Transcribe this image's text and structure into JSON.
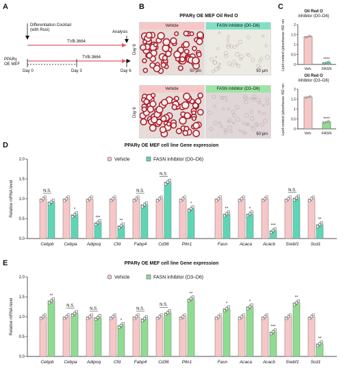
{
  "panelA": {
    "letter": "A",
    "cell_label": [
      "PPARγ",
      "OE MEF"
    ],
    "cocktail": [
      "Differentiation Cocktail",
      "(with Rosi)"
    ],
    "analysis": "Analysis",
    "treatment1": "TVB-3664",
    "treatment2": "TVB-3664",
    "days": [
      "Day 0",
      "Day 3",
      "Day 6"
    ]
  },
  "panelB": {
    "letter": "B",
    "title": "PPARγ OE MEF Oil Red O",
    "top_left_label": "Vehicle",
    "top_right_label": "FASN Inhibitor (D0–D6)",
    "bottom_left_label": "Vehicle",
    "bottom_right_label": "FASN Inhibitor (D3–D6)",
    "day_label": "Day 6",
    "scale_bar": "50 µm"
  },
  "panelC": {
    "letter": "C",
    "title1": "Oil Red O",
    "subtitle1": "inhibitor (D0–D6)",
    "title2": "Oil Red O",
    "subtitle2": "inhibitor (D3–D6)",
    "ylabel": "Lipid content (absorbance 492 nm)",
    "sig": "****",
    "colors": {
      "vehicle": "#f7c7c7",
      "fasn1": "#5ed6b6",
      "fasn2": "#8fdc90"
    }
  },
  "panelD": {
    "letter": "D",
    "title": "PPARγ OE MEF cell line Gene expression",
    "legend_vehicle": "Vehicle",
    "legend_treat": "FASN inhibitor (D0–D6)"
  },
  "panelE": {
    "letter": "E",
    "title": "PPARγ OE MEF cell line Gene expression",
    "legend_vehicle": "Vehicle",
    "legend_treat": "FASN inhibitor (D3–D6)"
  },
  "chart_data": [
    {
      "type": "bar",
      "panel": "C-top",
      "title": "Oil Red O",
      "subtitle": "inhibitor (D0–D6)",
      "ylabel": "Lipid content (absorbance 492 nm)",
      "categories": [
        "Veh.",
        "FASN"
      ],
      "values": [
        1.4,
        0.1
      ],
      "ylim": [
        0,
        2.0
      ],
      "yticks": [
        0,
        0.5,
        1.0,
        1.5,
        2.0
      ],
      "significance": [
        "",
        "****"
      ]
    },
    {
      "type": "bar",
      "panel": "C-bottom",
      "title": "Oil Red O",
      "subtitle": "inhibitor (D3–D6)",
      "ylabel": "Lipid content (absorbance 492 nm)",
      "categories": [
        "Veh.",
        "FASN"
      ],
      "values": [
        1.6,
        0.35
      ],
      "ylim": [
        0,
        2.0
      ],
      "yticks": [
        0,
        0.5,
        1.0,
        1.5,
        2.0
      ],
      "significance": [
        "",
        "****"
      ]
    },
    {
      "type": "bar",
      "panel": "D",
      "title": "PPARγ OE MEF cell line Gene expression",
      "ylabel": "Relative mRNA level",
      "ylim": [
        0,
        2.0
      ],
      "yticks": [
        0.0,
        0.5,
        1.0,
        1.5,
        2.0
      ],
      "ytick_labels": [
        "0.0",
        "0.5",
        "1.0",
        "1.5",
        "2.0"
      ],
      "categories": [
        "Cebpb",
        "Cebpa",
        "Adipoq",
        "Cfd",
        "Fabp4",
        "Cd36",
        "Plin1",
        "Fasn",
        "Acaca",
        "Acacb",
        "Srebf1",
        "Scd1"
      ],
      "series": [
        {
          "name": "Vehicle",
          "values": [
            1.0,
            1.0,
            1.0,
            1.0,
            1.0,
            1.0,
            1.0,
            1.0,
            1.0,
            1.0,
            1.0,
            1.0
          ]
        },
        {
          "name": "FASN inhibitor (D0–D6)",
          "values": [
            0.92,
            0.6,
            0.4,
            0.32,
            0.85,
            1.42,
            0.75,
            0.62,
            0.62,
            0.2,
            1.02,
            0.35
          ]
        }
      ],
      "significance": [
        "N.S.",
        "*",
        "***",
        "**",
        "N.S.",
        "N.S.",
        "*",
        "**",
        "*",
        "***",
        "N.S.",
        "**"
      ]
    },
    {
      "type": "bar",
      "panel": "E",
      "title": "PPARγ OE MEF cell line Gene expression",
      "ylabel": "Relative mRNA level",
      "ylim": [
        0,
        2.0
      ],
      "yticks": [
        0.0,
        0.5,
        1.0,
        1.5,
        2.0
      ],
      "ytick_labels": [
        "0.0",
        "0.5",
        "1.0",
        "1.5",
        "2.0"
      ],
      "categories": [
        "Cebpb",
        "Cebpa",
        "Adipoq",
        "Cfd",
        "Fabp4",
        "Cd36",
        "Plin1",
        "Fasn",
        "Acaca",
        "Acacb",
        "Srebf1",
        "Scd1"
      ],
      "series": [
        {
          "name": "Vehicle",
          "values": [
            1.0,
            1.0,
            1.0,
            1.0,
            1.0,
            1.0,
            1.0,
            1.0,
            1.0,
            1.0,
            1.0,
            1.0
          ]
        },
        {
          "name": "FASN inhibitor (D3–D6)",
          "values": [
            1.4,
            1.08,
            0.98,
            0.78,
            0.95,
            1.1,
            1.45,
            1.2,
            1.25,
            0.62,
            1.35,
            0.32
          ]
        }
      ],
      "significance": [
        "**",
        "N.S.",
        "N.S.",
        "*",
        "N.S.",
        "N.S.",
        "**",
        "*",
        "*",
        "***",
        "**",
        "**"
      ]
    }
  ]
}
